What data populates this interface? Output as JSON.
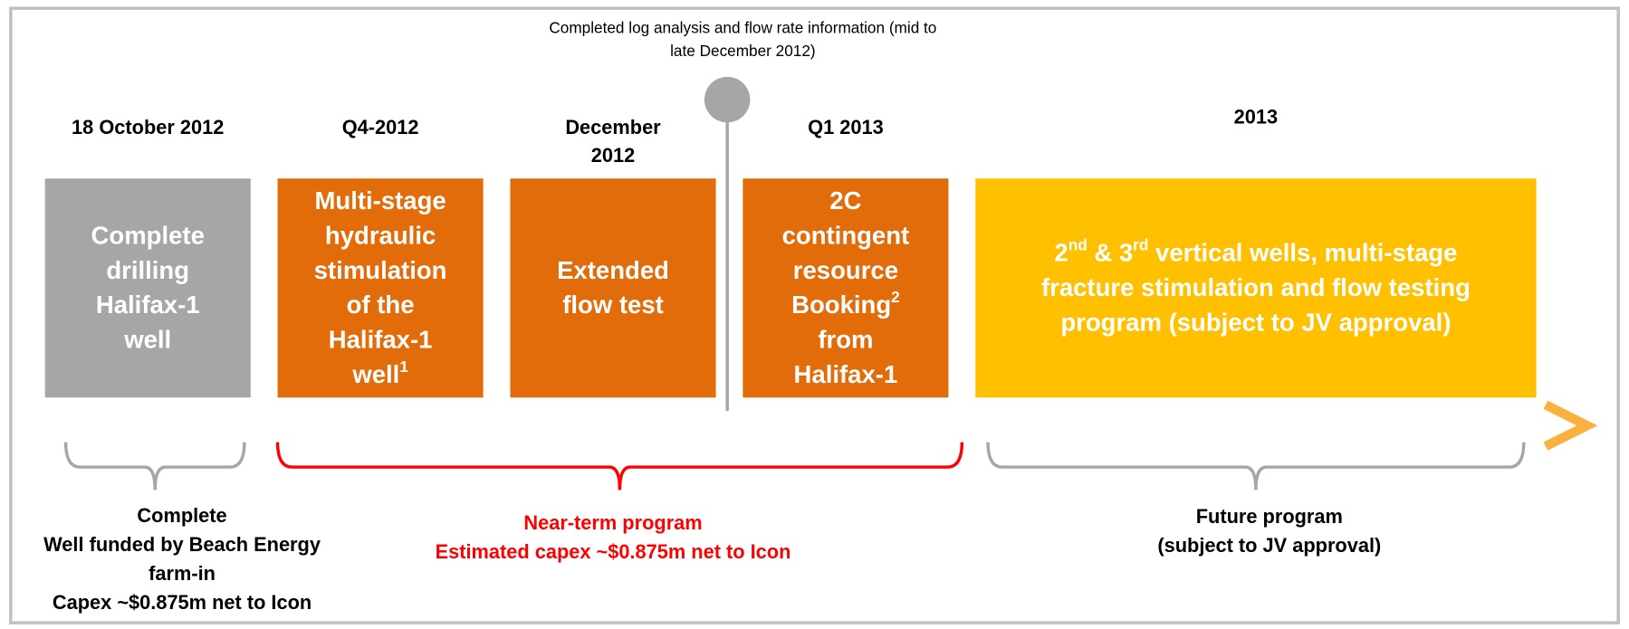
{
  "annotation": {
    "lines": [
      "Completed log analysis and flow rate information (mid to",
      "late December 2012)"
    ]
  },
  "stages": [
    {
      "date": [
        "18 October 2012"
      ],
      "color": "#a6a6a6",
      "lines": [
        [
          {
            "text": "Complete"
          }
        ],
        [
          {
            "text": "drilling"
          }
        ],
        [
          {
            "text": "Halifax-1"
          }
        ],
        [
          {
            "text": "well"
          }
        ]
      ]
    },
    {
      "date": [
        "Q4-2012"
      ],
      "color": "#e36c0a",
      "lines": [
        [
          {
            "text": "Multi-stage"
          }
        ],
        [
          {
            "text": "hydraulic"
          }
        ],
        [
          {
            "text": "stimulation"
          }
        ],
        [
          {
            "text": "of the"
          }
        ],
        [
          {
            "text": "Halifax-1"
          }
        ],
        [
          {
            "text": "well"
          },
          {
            "sup": "1"
          }
        ]
      ]
    },
    {
      "date": [
        "December",
        "2012"
      ],
      "color": "#e36c0a",
      "lines": [
        [
          {
            "text": "Extended"
          }
        ],
        [
          {
            "text": "flow test"
          }
        ]
      ]
    },
    {
      "date": [
        "Q1 2013"
      ],
      "color": "#e36c0a",
      "lines": [
        [
          {
            "text": "2C"
          }
        ],
        [
          {
            "text": "contingent"
          }
        ],
        [
          {
            "text": "resource"
          }
        ],
        [
          {
            "text": "Booking"
          },
          {
            "sup": "2"
          }
        ],
        [
          {
            "text": "from"
          }
        ],
        [
          {
            "text": "Halifax-1"
          }
        ]
      ]
    },
    {
      "date": [
        "2013"
      ],
      "color": "#ffc000",
      "lines": [
        [
          {
            "text": "2"
          },
          {
            "sup": "nd"
          },
          {
            "text": " & 3"
          },
          {
            "sup": "rd"
          },
          {
            "text": " vertical wells, multi-stage"
          }
        ],
        [
          {
            "text": "fracture stimulation and flow testing"
          }
        ],
        [
          {
            "text": "program (subject to JV approval)"
          }
        ]
      ]
    }
  ],
  "programs": [
    {
      "color": "#000000",
      "bracket_color": "#a6a6a6",
      "lines": [
        "Complete",
        "Well funded by Beach Energy",
        "farm-in",
        "Capex ~$0.875m net to Icon"
      ]
    },
    {
      "color": "#ff0000",
      "bracket_color": "#ff0000",
      "lines": [
        "Near-term program",
        "Estimated capex ~$0.875m net to Icon"
      ]
    },
    {
      "color": "#000000",
      "bracket_color": "#a6a6a6",
      "lines": [
        "Future program",
        "(subject to JV approval)"
      ]
    }
  ]
}
